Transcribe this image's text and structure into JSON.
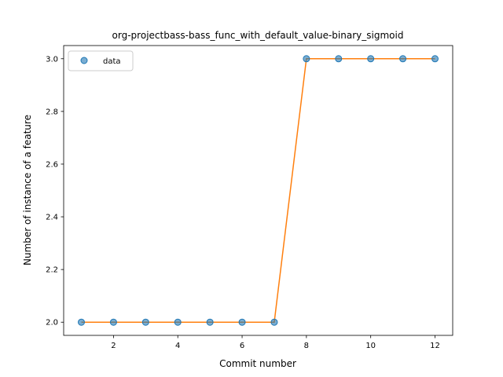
{
  "chart_data": {
    "type": "line",
    "title": "org-projectbass-bass_func_with_default_value-binary_sigmoid",
    "xlabel": "Commit number",
    "ylabel": "Number of instance of a feature",
    "xlim": [
      0.45,
      12.55
    ],
    "ylim": [
      1.95,
      3.05
    ],
    "xticks": [
      2,
      4,
      6,
      8,
      10,
      12
    ],
    "yticks": [
      2.0,
      2.2,
      2.4,
      2.6,
      2.8,
      3.0
    ],
    "ytick_labels": [
      "2.0",
      "2.2",
      "2.4",
      "2.6",
      "2.8",
      "3.0"
    ],
    "x": [
      1,
      2,
      3,
      4,
      5,
      6,
      7,
      8,
      9,
      10,
      11,
      12
    ],
    "series": [
      {
        "name": "data",
        "style": "markers",
        "color": "#1f77b4",
        "values": [
          2,
          2,
          2,
          2,
          2,
          2,
          2,
          3,
          3,
          3,
          3,
          3
        ]
      },
      {
        "style": "line",
        "color": "#ff7f0e",
        "values": [
          2,
          2,
          2,
          2,
          2,
          2,
          2,
          3,
          3,
          3,
          3,
          3
        ]
      }
    ],
    "legend": {
      "placement": "upper-left",
      "entries": [
        "data"
      ]
    },
    "grid": false
  }
}
